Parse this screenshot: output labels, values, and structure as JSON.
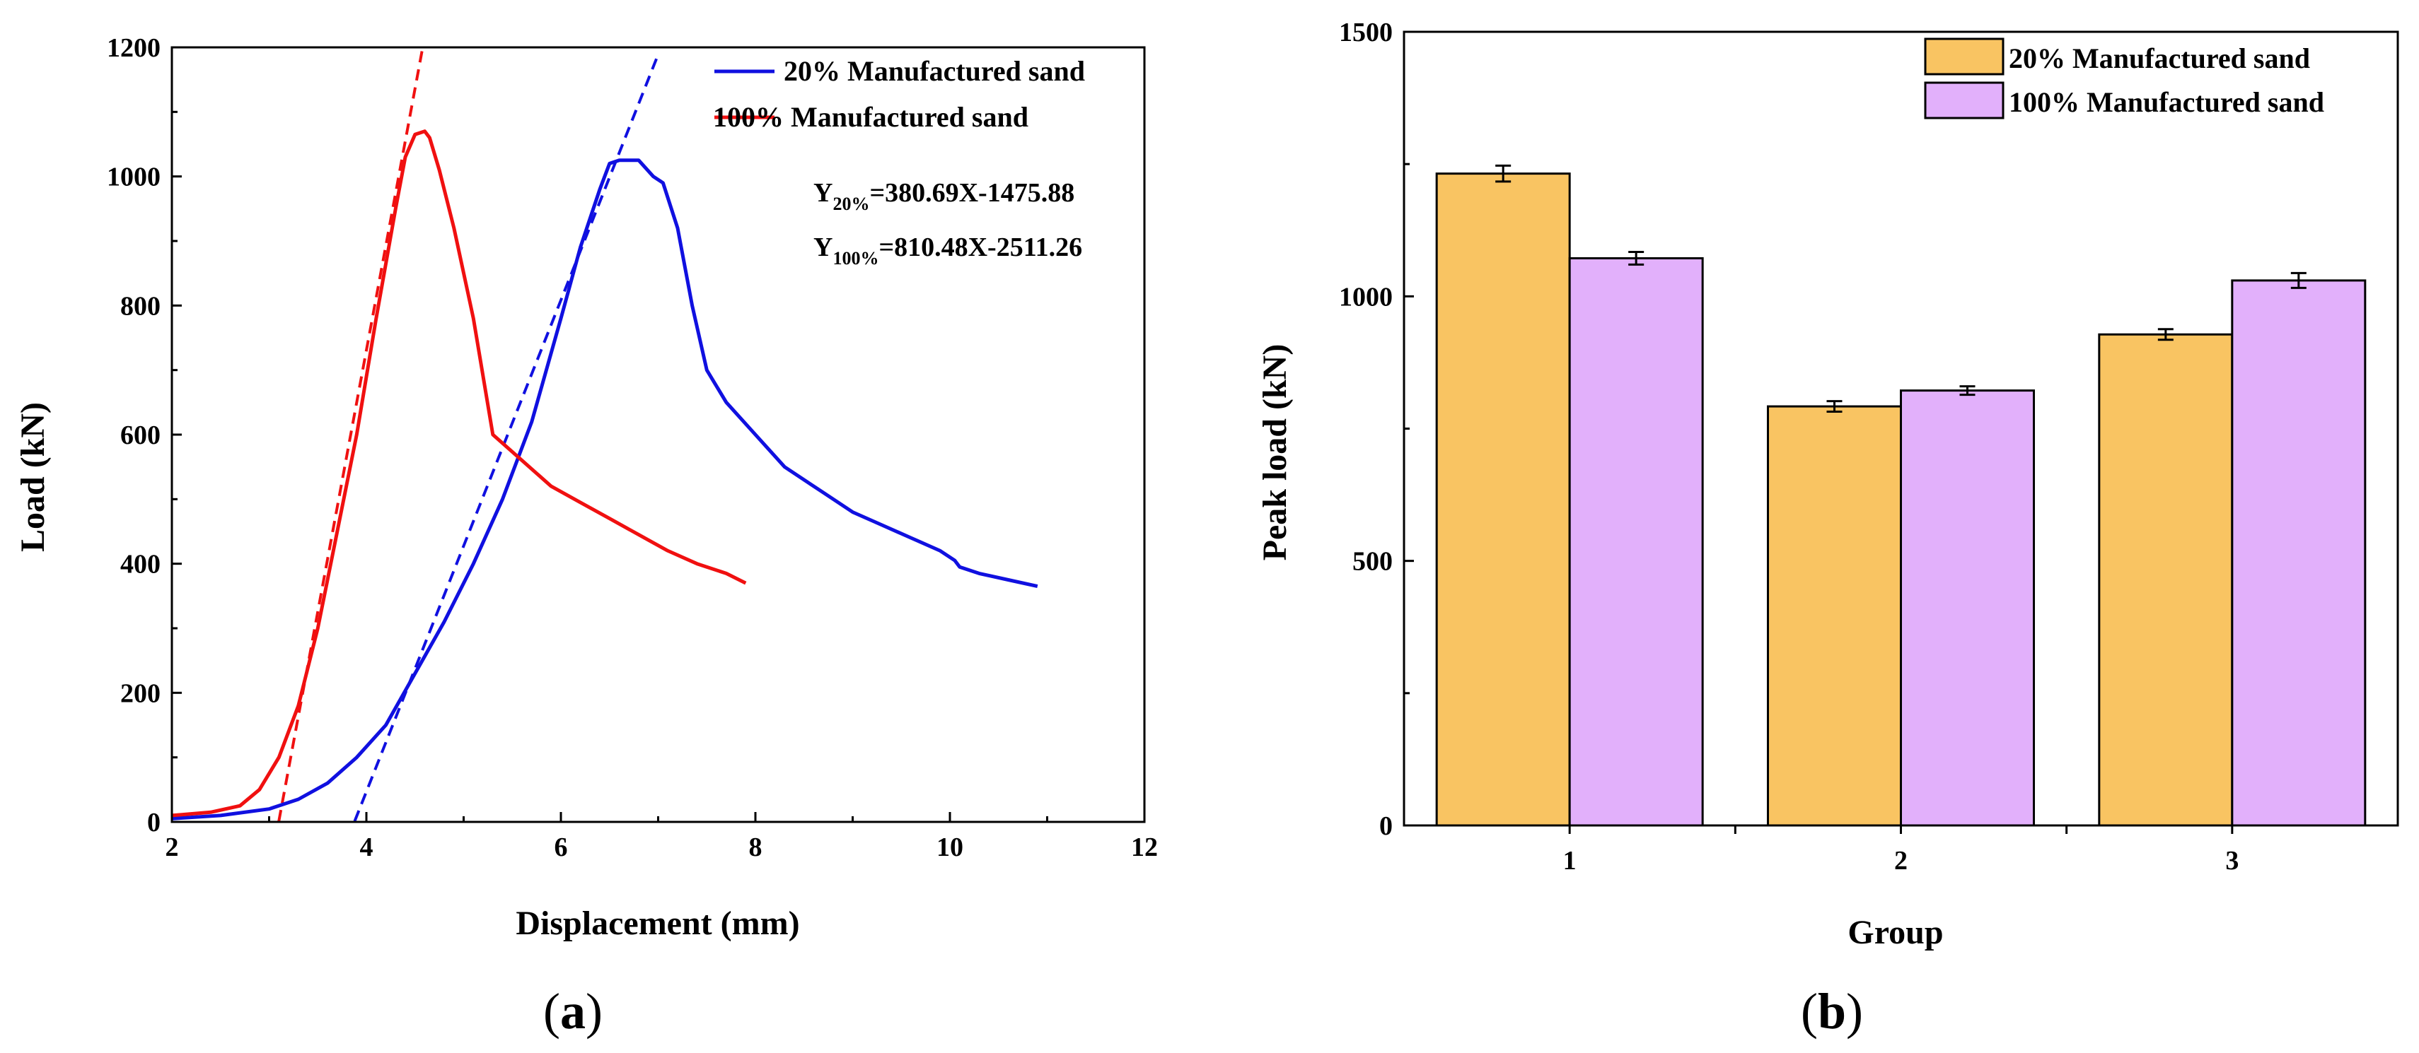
{
  "chart_data": [
    {
      "type": "line",
      "panel": "a",
      "panel_label": "a",
      "xlabel": "Displacement (mm)",
      "ylabel": "Load (kN)",
      "xlim": [
        2,
        12
      ],
      "ylim": [
        0,
        1200
      ],
      "x_ticks": [
        2,
        4,
        6,
        8,
        10,
        12
      ],
      "y_ticks": [
        0,
        200,
        400,
        600,
        800,
        1000,
        1200
      ],
      "legend_position": "top-right",
      "series": [
        {
          "name": "20%   Manufactured sand",
          "color": "#1010e0",
          "points": [
            [
              2.0,
              5
            ],
            [
              2.5,
              10
            ],
            [
              3.0,
              20
            ],
            [
              3.3,
              35
            ],
            [
              3.6,
              60
            ],
            [
              3.9,
              100
            ],
            [
              4.2,
              150
            ],
            [
              4.5,
              230
            ],
            [
              4.8,
              310
            ],
            [
              5.1,
              400
            ],
            [
              5.4,
              500
            ],
            [
              5.7,
              620
            ],
            [
              6.0,
              780
            ],
            [
              6.2,
              890
            ],
            [
              6.4,
              980
            ],
            [
              6.5,
              1020
            ],
            [
              6.6,
              1025
            ],
            [
              6.8,
              1025
            ],
            [
              6.95,
              1000
            ],
            [
              7.05,
              990
            ],
            [
              7.2,
              920
            ],
            [
              7.35,
              800
            ],
            [
              7.5,
              700
            ],
            [
              7.7,
              650
            ],
            [
              8.0,
              600
            ],
            [
              8.3,
              550
            ],
            [
              8.7,
              510
            ],
            [
              9.0,
              480
            ],
            [
              9.3,
              460
            ],
            [
              9.6,
              440
            ],
            [
              9.9,
              420
            ],
            [
              10.05,
              405
            ],
            [
              10.1,
              395
            ],
            [
              10.3,
              385
            ],
            [
              10.6,
              375
            ],
            [
              10.9,
              365
            ]
          ]
        },
        {
          "name": "100% Manufactured sand",
          "color": "#f01010",
          "points": [
            [
              2.0,
              10
            ],
            [
              2.4,
              15
            ],
            [
              2.7,
              25
            ],
            [
              2.9,
              50
            ],
            [
              3.1,
              100
            ],
            [
              3.3,
              180
            ],
            [
              3.5,
              300
            ],
            [
              3.7,
              450
            ],
            [
              3.9,
              600
            ],
            [
              4.1,
              780
            ],
            [
              4.3,
              950
            ],
            [
              4.4,
              1030
            ],
            [
              4.5,
              1065
            ],
            [
              4.6,
              1070
            ],
            [
              4.65,
              1060
            ],
            [
              4.75,
              1010
            ],
            [
              4.9,
              920
            ],
            [
              5.1,
              780
            ],
            [
              5.3,
              600
            ],
            [
              5.6,
              560
            ],
            [
              5.9,
              520
            ],
            [
              6.2,
              495
            ],
            [
              6.5,
              470
            ],
            [
              6.8,
              445
            ],
            [
              7.1,
              420
            ],
            [
              7.4,
              400
            ],
            [
              7.7,
              385
            ],
            [
              7.9,
              370
            ]
          ]
        }
      ],
      "fit_lines": [
        {
          "name": "Y20% fit",
          "color": "#1010e0",
          "slope": 380.69,
          "intercept": -1475.88,
          "x_range": [
            3.88,
            7.0
          ]
        },
        {
          "name": "Y100% fit",
          "color": "#f01010",
          "slope": 810.48,
          "intercept": -2511.26,
          "x_range": [
            3.1,
            4.58
          ]
        }
      ],
      "equations": [
        {
          "lead": "Y",
          "sub": "20%",
          "rest": "=380.69X-1475.88"
        },
        {
          "lead": "Y",
          "sub": "100%",
          "rest": "=810.48X-2511.26"
        }
      ]
    },
    {
      "type": "bar",
      "panel": "b",
      "panel_label": "b",
      "xlabel": "Group",
      "ylabel": "Peak load (kN)",
      "ylim": [
        0,
        1500
      ],
      "y_ticks": [
        0,
        500,
        1000,
        1500
      ],
      "categories": [
        "1",
        "2",
        "3"
      ],
      "legend_position": "top-right",
      "series": [
        {
          "name": "20%   Manufactured sand",
          "color": "#f9c462",
          "values": [
            1232,
            792,
            928
          ],
          "errors": [
            15,
            10,
            10
          ]
        },
        {
          "name": "100% Manufactured sand",
          "color": "#e2b0fb",
          "values": [
            1072,
            822,
            1030
          ],
          "errors": [
            12,
            8,
            14
          ]
        }
      ]
    }
  ]
}
